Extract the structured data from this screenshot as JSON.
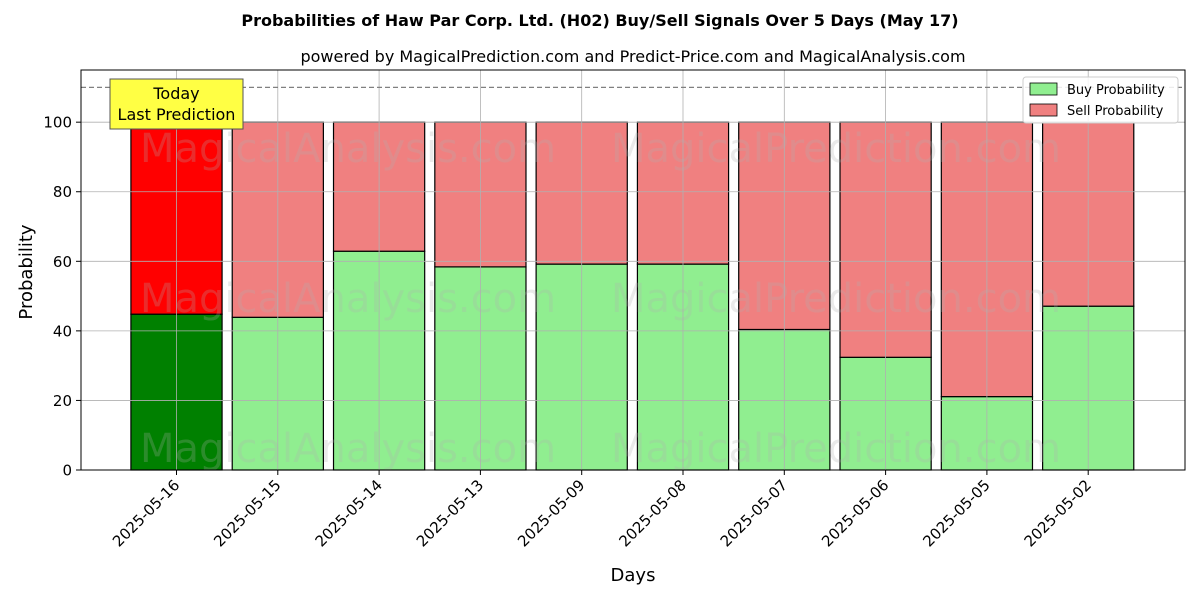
{
  "chart_data": {
    "type": "bar",
    "stacked": true,
    "title": "Probabilities of Haw Par Corp. Ltd. (H02) Buy/Sell Signals Over 5 Days (May 17)",
    "subtitle": "powered by MagicalPrediction.com and Predict-Price.com and MagicalAnalysis.com",
    "xlabel": "Days",
    "ylabel": "Probability",
    "ylim": [
      0,
      115
    ],
    "yticks": [
      0,
      20,
      40,
      60,
      80,
      100
    ],
    "grid": true,
    "reference_line": 110,
    "legend_position": "top-right",
    "categories": [
      "2025-05-16",
      "2025-05-15",
      "2025-05-14",
      "2025-05-13",
      "2025-05-09",
      "2025-05-08",
      "2025-05-07",
      "2025-05-06",
      "2025-05-05",
      "2025-05-02"
    ],
    "series": [
      {
        "name": "Buy Probability",
        "values": [
          44.8,
          43.9,
          62.9,
          58.4,
          59.2,
          59.2,
          40.4,
          32.4,
          21.1,
          47.1
        ],
        "color": "#90ee90",
        "highlight_color": "#008000"
      },
      {
        "name": "Sell Probability",
        "values": [
          55.2,
          56.1,
          37.1,
          41.6,
          40.8,
          40.8,
          59.6,
          67.6,
          78.9,
          52.9
        ],
        "color": "#f08080",
        "highlight_color": "#ff0000"
      }
    ],
    "annotation": {
      "line1": "Today",
      "line2": "Last Prediction",
      "background": "#ffff44"
    },
    "watermarks": [
      "MagicalAnalysis.com",
      "MagicalPrediction.com"
    ]
  }
}
